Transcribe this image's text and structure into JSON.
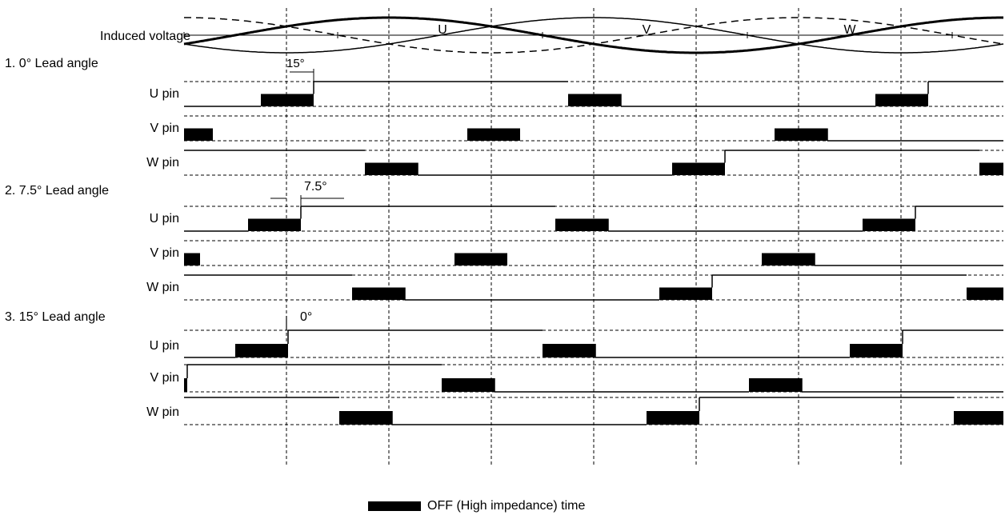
{
  "induced_voltage": {
    "label": "Induced voltage",
    "phases": [
      "U",
      "V",
      "W"
    ]
  },
  "sections": [
    {
      "title": "1. 0° Lead angle",
      "annotation": "15°",
      "rows": [
        {
          "label": "U pin",
          "initial": "low",
          "levels": [
            "low",
            "off",
            "high",
            "off",
            "low",
            "off",
            "high"
          ]
        },
        {
          "label": "V pin",
          "initial": "off",
          "levels": [
            "off",
            "low",
            "off",
            "high",
            "off",
            "low"
          ]
        },
        {
          "label": "W pin",
          "initial": "high",
          "levels": [
            "high",
            "off",
            "low",
            "off",
            "high",
            "off"
          ]
        }
      ]
    },
    {
      "title": "2. 7.5° Lead angle",
      "annotation": "7.5°",
      "rows": [
        {
          "label": "U pin",
          "initial": "low",
          "levels": [
            "low",
            "off",
            "high",
            "off",
            "low",
            "off",
            "high"
          ]
        },
        {
          "label": "V pin",
          "initial": "off",
          "levels": [
            "off",
            "low",
            "off",
            "high",
            "off",
            "low"
          ]
        },
        {
          "label": "W pin",
          "initial": "high",
          "levels": [
            "high",
            "off",
            "low",
            "off",
            "high",
            "off"
          ]
        }
      ]
    },
    {
      "title": "3. 15° Lead angle",
      "annotation": "0°",
      "rows": [
        {
          "label": "U pin",
          "initial": "low",
          "levels": [
            "low",
            "off",
            "high",
            "off",
            "low",
            "off",
            "high"
          ]
        },
        {
          "label": "V pin",
          "initial": "low",
          "levels": [
            "low",
            "off",
            "high",
            "off",
            "low"
          ]
        },
        {
          "label": "W pin",
          "initial": "high",
          "levels": [
            "high",
            "off",
            "low",
            "off",
            "high",
            "off"
          ]
        }
      ]
    }
  ],
  "legend": {
    "label": "OFF (High impedance) time",
    "color": "#000000"
  }
}
